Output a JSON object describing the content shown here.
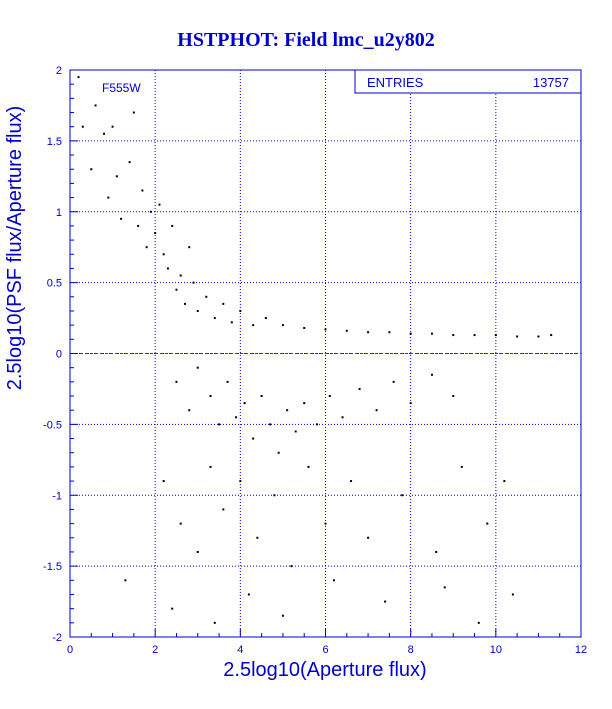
{
  "colors": {
    "axis": "#0000cc",
    "grid": "#0000cc",
    "points": "#000000",
    "reference_line": "#cc0000",
    "text": "#0000cc"
  },
  "chart_data": {
    "type": "scatter",
    "title": "HSTPHOT: Field lmc_u2y802",
    "xlabel": "2.5log10(Aperture flux)",
    "ylabel": "2.5log10(PSF flux/Aperture flux)",
    "xlim": [
      0,
      12
    ],
    "ylim": [
      -2,
      2
    ],
    "xticks": [
      "0",
      "2",
      "4",
      "6",
      "8",
      "10",
      "12"
    ],
    "yticks": [
      "-2",
      "-1.5",
      "-1",
      "-0.5",
      "0",
      "0.5",
      "1",
      "1.5",
      "2"
    ],
    "grid": true,
    "annotation": "F555W",
    "stats": {
      "label": "ENTRIES",
      "value": "13757"
    },
    "reference_line": {
      "y": 0
    },
    "series": [
      {
        "points": [
          [
            0.2,
            1.95
          ],
          [
            0.3,
            1.6
          ],
          [
            0.5,
            1.3
          ],
          [
            0.6,
            1.75
          ],
          [
            0.8,
            1.55
          ],
          [
            0.9,
            1.1
          ],
          [
            1.0,
            1.6
          ],
          [
            1.1,
            1.25
          ],
          [
            1.2,
            0.95
          ],
          [
            1.4,
            1.35
          ],
          [
            1.5,
            1.7
          ],
          [
            1.6,
            0.9
          ],
          [
            1.7,
            1.15
          ],
          [
            1.8,
            0.75
          ],
          [
            1.9,
            1.0
          ],
          [
            2.0,
            0.85
          ],
          [
            2.1,
            1.05
          ],
          [
            2.2,
            0.7
          ],
          [
            2.3,
            0.6
          ],
          [
            2.4,
            0.9
          ],
          [
            2.5,
            0.45
          ],
          [
            2.6,
            0.55
          ],
          [
            2.7,
            0.35
          ],
          [
            2.8,
            0.75
          ],
          [
            2.9,
            0.5
          ],
          [
            3.0,
            0.3
          ],
          [
            3.2,
            0.4
          ],
          [
            3.4,
            0.25
          ],
          [
            3.6,
            0.35
          ],
          [
            3.8,
            0.22
          ],
          [
            4.0,
            0.3
          ],
          [
            4.3,
            0.2
          ],
          [
            4.6,
            0.25
          ],
          [
            5.0,
            0.2
          ],
          [
            5.5,
            0.18
          ],
          [
            6.0,
            0.17
          ],
          [
            6.5,
            0.16
          ],
          [
            7.0,
            0.15
          ],
          [
            7.5,
            0.15
          ],
          [
            8.0,
            0.14
          ],
          [
            8.5,
            0.14
          ],
          [
            9.0,
            0.13
          ],
          [
            9.5,
            0.13
          ],
          [
            10.0,
            0.13
          ],
          [
            10.5,
            0.12
          ],
          [
            11.0,
            0.12
          ],
          [
            11.3,
            0.13
          ],
          [
            2.5,
            -0.2
          ],
          [
            2.8,
            -0.4
          ],
          [
            3.0,
            -0.1
          ],
          [
            3.3,
            -0.3
          ],
          [
            3.5,
            -0.5
          ],
          [
            3.7,
            -0.2
          ],
          [
            3.9,
            -0.45
          ],
          [
            4.1,
            -0.35
          ],
          [
            4.3,
            -0.6
          ],
          [
            4.5,
            -0.3
          ],
          [
            4.7,
            -0.5
          ],
          [
            4.9,
            -0.7
          ],
          [
            5.1,
            -0.4
          ],
          [
            5.3,
            -0.55
          ],
          [
            5.5,
            -0.35
          ],
          [
            5.8,
            -0.5
          ],
          [
            6.1,
            -0.3
          ],
          [
            6.4,
            -0.45
          ],
          [
            6.8,
            -0.25
          ],
          [
            7.2,
            -0.4
          ],
          [
            7.6,
            -0.2
          ],
          [
            8.0,
            -0.35
          ],
          [
            8.5,
            -0.15
          ],
          [
            9.0,
            -0.3
          ],
          [
            2.2,
            -0.9
          ],
          [
            2.6,
            -1.2
          ],
          [
            3.0,
            -1.4
          ],
          [
            3.3,
            -0.8
          ],
          [
            3.6,
            -1.1
          ],
          [
            4.0,
            -0.9
          ],
          [
            4.4,
            -1.3
          ],
          [
            4.8,
            -1.0
          ],
          [
            5.2,
            -1.5
          ],
          [
            5.6,
            -0.8
          ],
          [
            6.0,
            -1.2
          ],
          [
            6.6,
            -0.9
          ],
          [
            7.0,
            -1.3
          ],
          [
            7.8,
            -1.0
          ],
          [
            8.6,
            -1.4
          ],
          [
            9.2,
            -0.8
          ],
          [
            9.8,
            -1.2
          ],
          [
            10.2,
            -0.9
          ],
          [
            1.3,
            -1.6
          ],
          [
            2.4,
            -1.8
          ],
          [
            3.4,
            -1.9
          ],
          [
            4.2,
            -1.7
          ],
          [
            5.0,
            -1.85
          ],
          [
            6.2,
            -1.6
          ],
          [
            7.4,
            -1.75
          ],
          [
            8.8,
            -1.65
          ],
          [
            9.6,
            -1.9
          ],
          [
            10.4,
            -1.7
          ]
        ]
      }
    ]
  }
}
